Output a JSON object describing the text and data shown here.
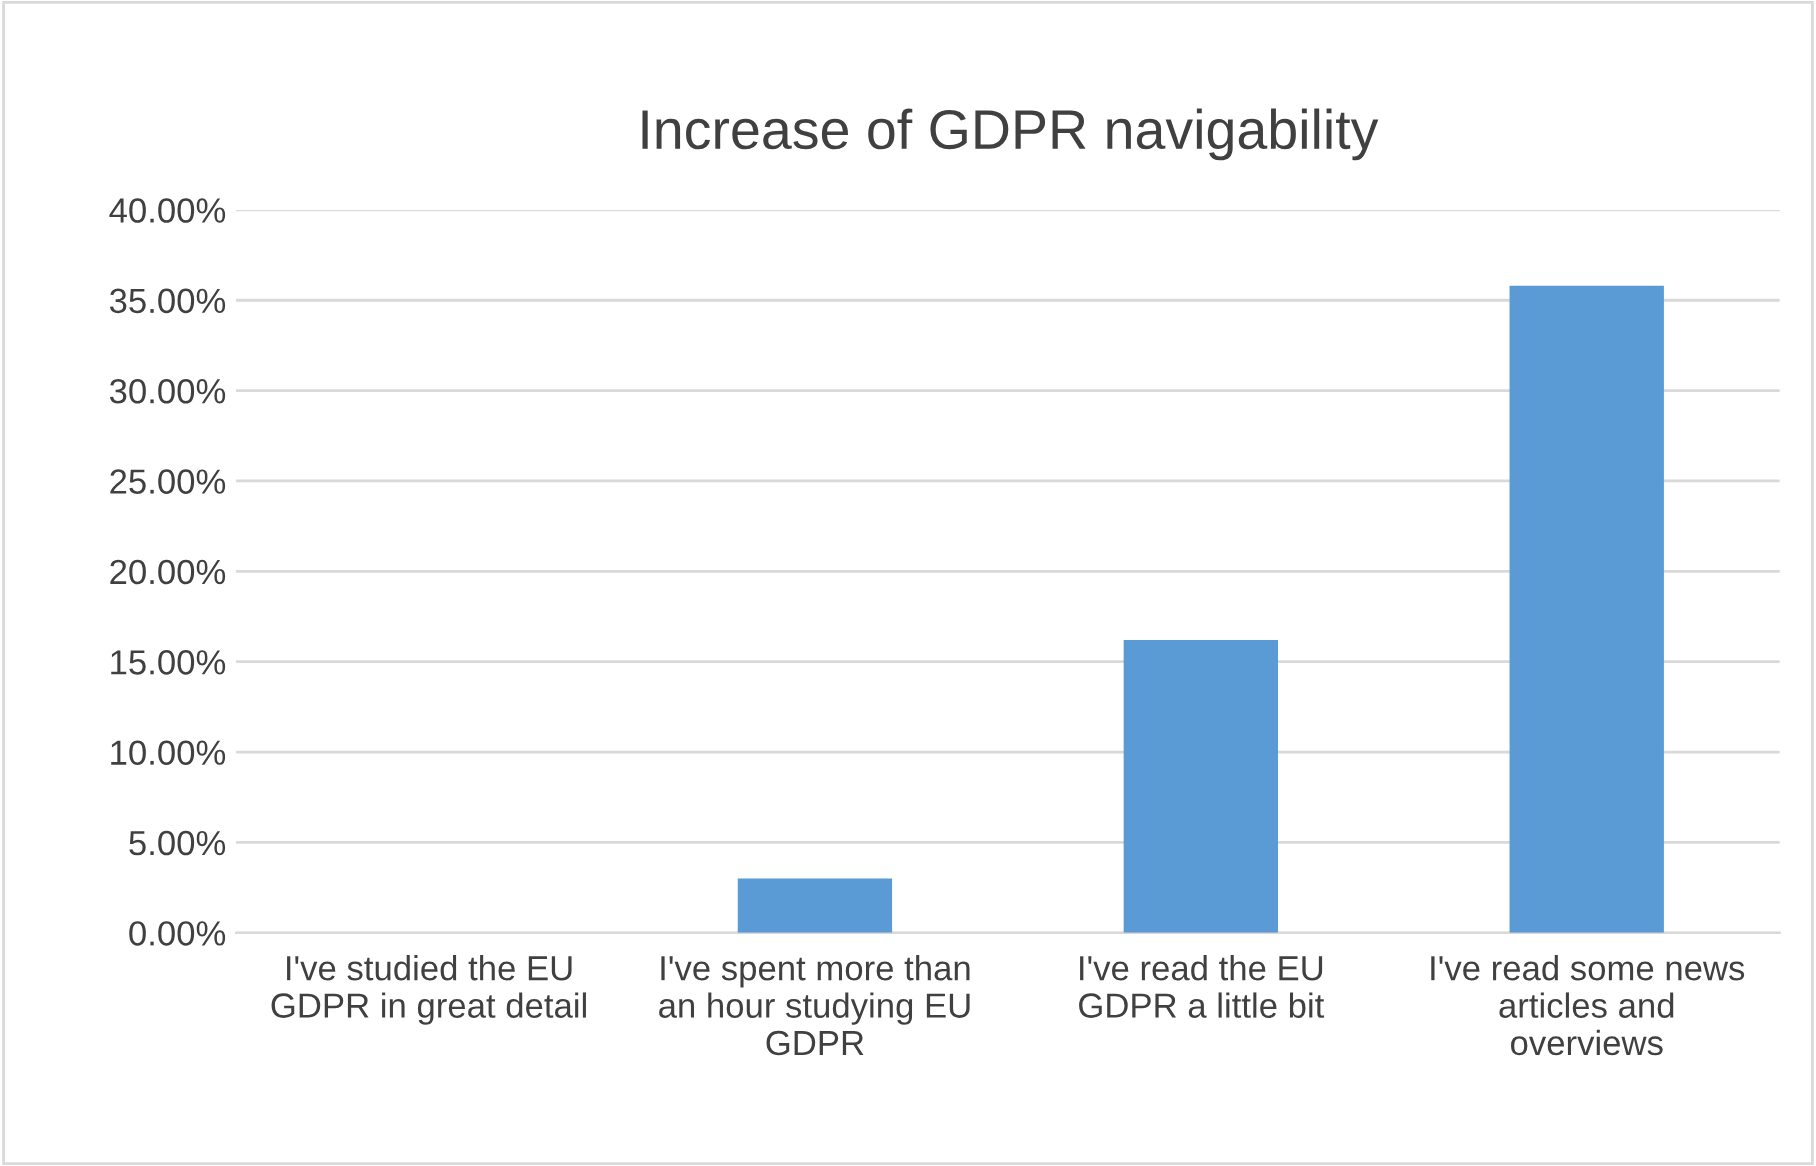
{
  "chart_data": {
    "type": "bar",
    "title": "Increase of GDPR navigability",
    "categories": [
      "I've studied the EU GDPR in great detail",
      "I've spent more than an hour studying EU GDPR",
      "I've read the EU GDPR a little bit",
      "I've read some news articles and overviews"
    ],
    "values": [
      0.0,
      3.0,
      16.2,
      35.8
    ],
    "color": "#5b9bd5",
    "ylim": [
      0,
      40
    ],
    "yticks": [
      {
        "value": 0,
        "label": "0.00%"
      },
      {
        "value": 5,
        "label": "5.00%"
      },
      {
        "value": 10,
        "label": "10.00%"
      },
      {
        "value": 15,
        "label": "15.00%"
      },
      {
        "value": 20,
        "label": "20.00%"
      },
      {
        "value": 25,
        "label": "25.00%"
      },
      {
        "value": 30,
        "label": "30.00%"
      },
      {
        "value": 35,
        "label": "35.00%"
      },
      {
        "value": 40,
        "label": "40.00%"
      }
    ],
    "grid": "y",
    "legend": false
  }
}
